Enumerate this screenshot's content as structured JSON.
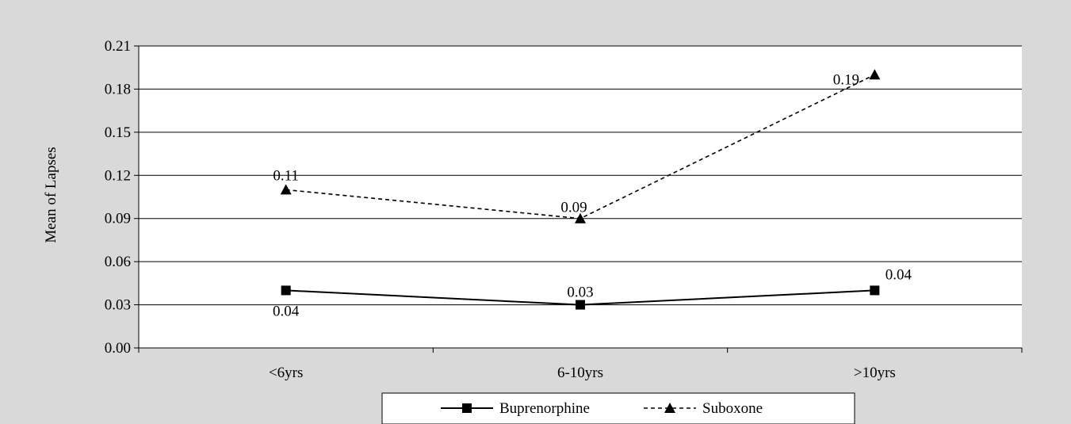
{
  "chart_data": {
    "type": "line",
    "title": "",
    "xlabel": "",
    "ylabel": "Mean of Lapses",
    "categories": [
      "<6yrs",
      "6-10yrs",
      ">10yrs"
    ],
    "ylim": [
      0,
      0.21
    ],
    "yticks": [
      "0.00",
      "0.03",
      "0.06",
      "0.09",
      "0.12",
      "0.15",
      "0.18",
      "0.21"
    ],
    "grid": true,
    "legend_position": "bottom",
    "series": [
      {
        "name": "Buprenorphine",
        "values": [
          0.04,
          0.03,
          0.04
        ],
        "labels": [
          "0.04",
          "0.03",
          "0.04"
        ],
        "marker": "square",
        "line_style": "solid",
        "color": "#000000"
      },
      {
        "name": "Suboxone",
        "values": [
          0.11,
          0.09,
          0.19
        ],
        "labels": [
          "0.11",
          "0.09",
          "0.19"
        ],
        "marker": "triangle",
        "line_style": "dashed",
        "color": "#000000"
      }
    ],
    "colors": {
      "background": "#d9d9d9",
      "plot_area": "#ffffff",
      "gridline": "#000000"
    }
  }
}
